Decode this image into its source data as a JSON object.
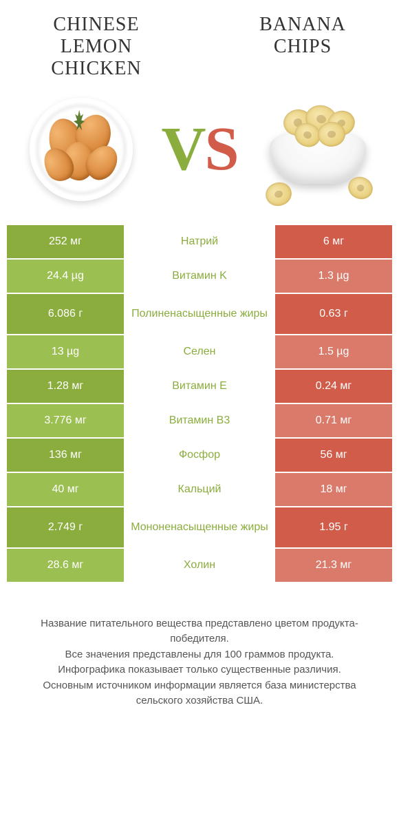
{
  "header": {
    "left_title": "CHINESE LEMON CHICKEN",
    "right_title": "BANANA CHIPS",
    "title_fontsize": 28,
    "title_font": "Georgia, serif",
    "title_color": "#333333"
  },
  "vs": {
    "v_color": "#8aad3d",
    "s_color": "#d15c4a",
    "fontsize": 90
  },
  "colors": {
    "left_dark": "#8aad3d",
    "left_light": "#9cbf52",
    "right_dark": "#d15c4a",
    "right_light": "#da7a6a",
    "mid_bg": "#ffffff",
    "nutrient_text": "#8a5a3a",
    "value_text": "#ffffff",
    "row_separator": "#ffffff"
  },
  "table": {
    "row_height_single": 48,
    "row_height_double": 58,
    "value_fontsize": 16,
    "nutrient_fontsize": 16,
    "rows": [
      {
        "nutrient": "Натрий",
        "left": "252 мг",
        "right": "6 мг",
        "winner": "left",
        "shade": "dark"
      },
      {
        "nutrient": "Витамин K",
        "left": "24.4 µg",
        "right": "1.3 µg",
        "winner": "left",
        "shade": "light"
      },
      {
        "nutrient": "Полиненасыщенные жиры",
        "left": "6.086 г",
        "right": "0.63 г",
        "winner": "left",
        "shade": "dark",
        "multiline": true
      },
      {
        "nutrient": "Селен",
        "left": "13 µg",
        "right": "1.5 µg",
        "winner": "left",
        "shade": "light"
      },
      {
        "nutrient": "Витамин E",
        "left": "1.28 мг",
        "right": "0.24 мг",
        "winner": "left",
        "shade": "dark"
      },
      {
        "nutrient": "Витамин B3",
        "left": "3.776 мг",
        "right": "0.71 мг",
        "winner": "left",
        "shade": "light"
      },
      {
        "nutrient": "Фосфор",
        "left": "136 мг",
        "right": "56 мг",
        "winner": "left",
        "shade": "dark"
      },
      {
        "nutrient": "Кальций",
        "left": "40 мг",
        "right": "18 мг",
        "winner": "left",
        "shade": "light"
      },
      {
        "nutrient": "Мононенасыщенные жиры",
        "left": "2.749 г",
        "right": "1.95 г",
        "winner": "left",
        "shade": "dark",
        "multiline": true
      },
      {
        "nutrient": "Холин",
        "left": "28.6 мг",
        "right": "21.3 мг",
        "winner": "left",
        "shade": "light"
      }
    ]
  },
  "footer": {
    "lines": [
      "Название питательного вещества представлено цветом продукта-победителя.",
      "Все значения представлены для 100 граммов продукта.",
      "Инфографика показывает только существенные различия.",
      "Основным источником информации является база министерства сельского хозяйства США."
    ],
    "fontsize": 15,
    "color": "#555555"
  }
}
